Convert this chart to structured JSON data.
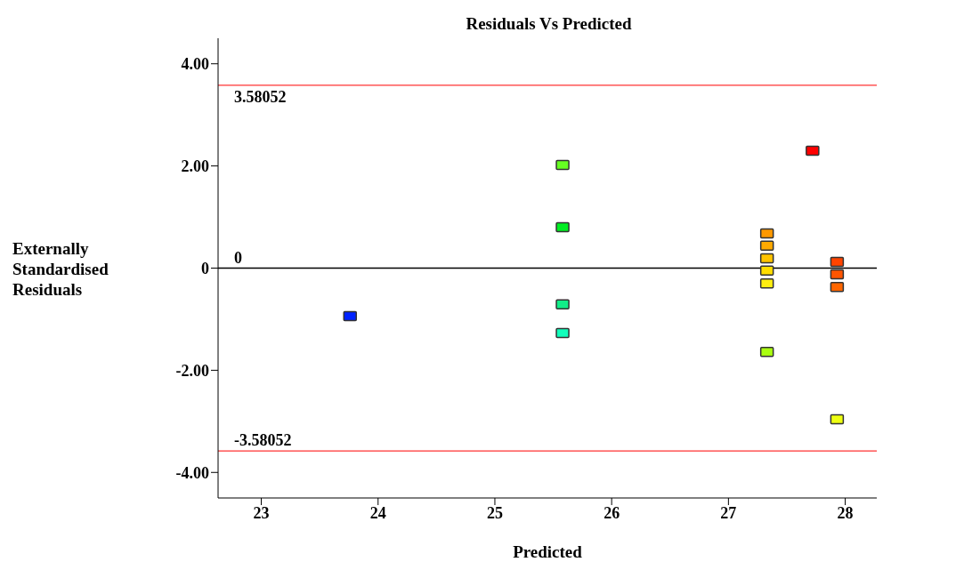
{
  "chart_data": {
    "type": "scatter",
    "title": "Residuals Vs Predicted",
    "xlabel": "Predicted",
    "ylabel": "Externally Standardised Residuals",
    "x": [
      23.76,
      25.58,
      25.58,
      25.58,
      25.58,
      27.33,
      27.33,
      27.33,
      27.33,
      27.33,
      27.33,
      27.72,
      27.93,
      27.93,
      27.93,
      27.93
    ],
    "values": [
      -0.94,
      2.02,
      0.8,
      -0.71,
      -1.27,
      0.68,
      0.44,
      0.19,
      -0.05,
      -0.3,
      -1.64,
      2.3,
      0.12,
      -0.12,
      -0.37,
      -2.96
    ],
    "colors": [
      "#0022ff",
      "#66ff22",
      "#00ee22",
      "#11ee88",
      "#11ffbb",
      "#ff9900",
      "#ffaa00",
      "#ffc400",
      "#ffdd00",
      "#ffee11",
      "#aaff11",
      "#ff0000",
      "#ff4400",
      "#ff5500",
      "#ff6600",
      "#eeff11"
    ],
    "marker": "square",
    "xlim": [
      22.63,
      28.27
    ],
    "xticks": [
      23,
      24,
      25,
      26,
      27,
      28
    ],
    "ylim": [
      -4.5,
      4.5
    ],
    "yticks": [
      {
        "value": -4,
        "label": "-4.00"
      },
      {
        "value": -2,
        "label": "-2.00"
      },
      {
        "value": 0,
        "label": "0"
      },
      {
        "value": 2,
        "label": "2.00"
      },
      {
        "value": 4,
        "label": "4.00"
      }
    ],
    "ref_lines": [
      {
        "axis": "y",
        "value": 3.58052,
        "label": "3.58052",
        "color": "#ff3333"
      },
      {
        "axis": "y",
        "value": 0,
        "label": "0",
        "color": "#000000"
      },
      {
        "axis": "y",
        "value": -3.58052,
        "label": "-3.58052",
        "color": "#ff3333"
      }
    ],
    "grid": false,
    "legend": false
  }
}
